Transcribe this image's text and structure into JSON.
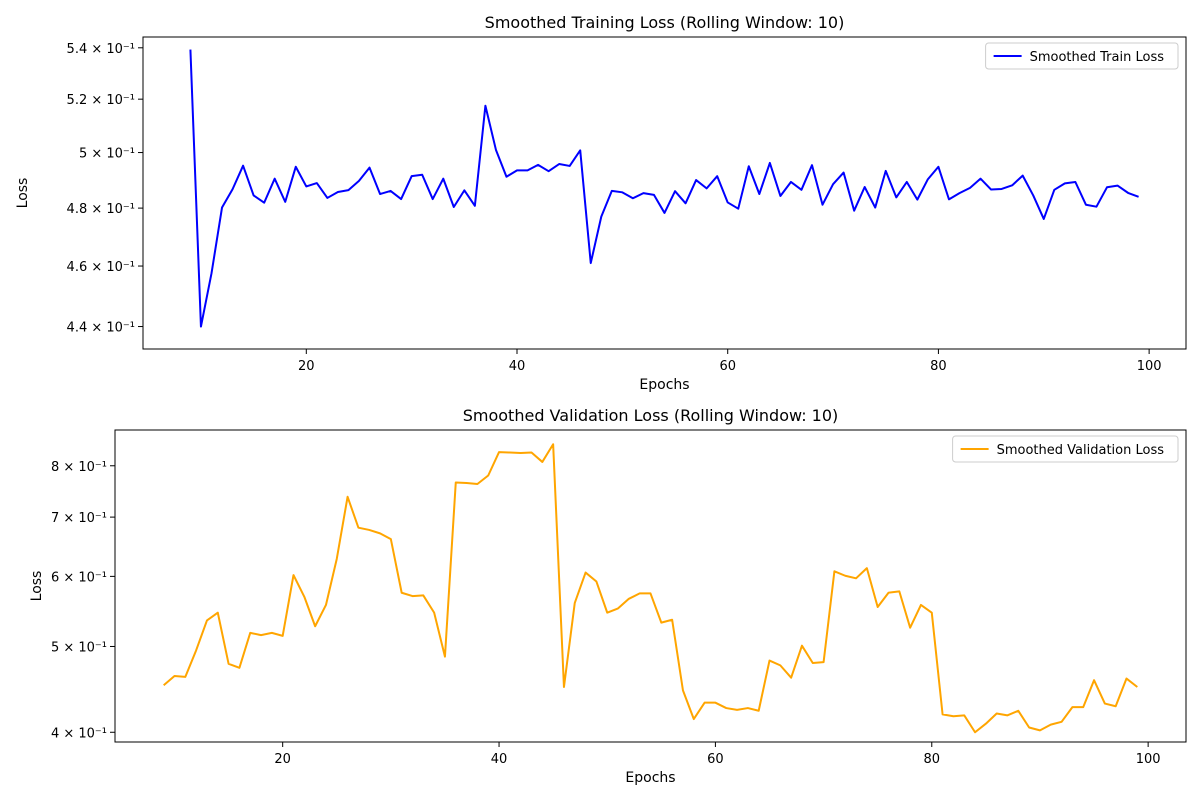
{
  "chart_data": [
    {
      "type": "line",
      "title": "Smoothed Training Loss (Rolling Window: 10)",
      "xlabel": "Epochs",
      "ylabel": "Loss",
      "yscale": "log",
      "xlim": [
        4.5,
        103.5
      ],
      "ylim": [
        0.4328,
        0.5443
      ],
      "xticks": [
        20,
        40,
        60,
        80,
        100
      ],
      "yticks": [
        {
          "value": 0.44,
          "label": "4.4 × 10⁻¹"
        },
        {
          "value": 0.46,
          "label": "4.6 × 10⁻¹"
        },
        {
          "value": 0.48,
          "label": "4.8 × 10⁻¹"
        },
        {
          "value": 0.5,
          "label": "5 × 10⁻¹"
        },
        {
          "value": 0.52,
          "label": "5.2 × 10⁻¹"
        },
        {
          "value": 0.54,
          "label": "5.4 × 10⁻¹"
        }
      ],
      "grid": false,
      "legend_position": "top-right",
      "series": [
        {
          "name": "Smoothed Train Loss",
          "color": "#0000ff",
          "x": [
            9,
            10,
            11,
            12,
            13,
            14,
            15,
            16,
            17,
            18,
            19,
            20,
            21,
            22,
            23,
            24,
            25,
            26,
            27,
            28,
            29,
            30,
            31,
            32,
            33,
            34,
            35,
            36,
            37,
            38,
            39,
            40,
            41,
            42,
            43,
            44,
            45,
            46,
            47,
            48,
            49,
            50,
            51,
            52,
            53,
            54,
            55,
            56,
            57,
            58,
            59,
            60,
            61,
            62,
            63,
            64,
            65,
            66,
            67,
            68,
            69,
            70,
            71,
            72,
            73,
            74,
            75,
            76,
            77,
            78,
            79,
            80,
            81,
            82,
            83,
            84,
            85,
            86,
            87,
            88,
            89,
            90,
            91,
            92,
            93,
            94,
            95,
            96,
            97,
            98,
            99
          ],
          "values": [
            0.5393,
            0.44,
            0.4575,
            0.4802,
            0.4867,
            0.4952,
            0.4845,
            0.4819,
            0.4905,
            0.4822,
            0.4948,
            0.4877,
            0.4889,
            0.4836,
            0.4857,
            0.4864,
            0.4897,
            0.4945,
            0.485,
            0.4861,
            0.4832,
            0.4914,
            0.4919,
            0.4832,
            0.4905,
            0.4804,
            0.4863,
            0.4808,
            0.5175,
            0.501,
            0.4912,
            0.4935,
            0.4935,
            0.4955,
            0.4932,
            0.4958,
            0.4951,
            0.5008,
            0.461,
            0.477,
            0.4861,
            0.4856,
            0.4835,
            0.4853,
            0.4847,
            0.4783,
            0.486,
            0.4817,
            0.49,
            0.487,
            0.4914,
            0.482,
            0.4798,
            0.495,
            0.485,
            0.4962,
            0.4843,
            0.4893,
            0.4865,
            0.4954,
            0.4812,
            0.4885,
            0.4927,
            0.4791,
            0.4875,
            0.4802,
            0.4933,
            0.4838,
            0.4893,
            0.483,
            0.4903,
            0.4948,
            0.4831,
            0.4853,
            0.4872,
            0.4905,
            0.4866,
            0.4868,
            0.4881,
            0.4916,
            0.4845,
            0.4762,
            0.4865,
            0.4888,
            0.4893,
            0.4812,
            0.4805,
            0.4874,
            0.488,
            0.4854,
            0.484
          ]
        }
      ]
    },
    {
      "type": "line",
      "title": "Smoothed Validation Loss (Rolling Window: 10)",
      "xlabel": "Epochs",
      "ylabel": "Loss",
      "yscale": "log",
      "xlim": [
        4.5,
        103.5
      ],
      "ylim": [
        0.39,
        0.878
      ],
      "xticks": [
        20,
        40,
        60,
        80,
        100
      ],
      "yticks": [
        {
          "value": 0.4,
          "label": "4 × 10⁻¹"
        },
        {
          "value": 0.5,
          "label": "5 × 10⁻¹"
        },
        {
          "value": 0.6,
          "label": "6 × 10⁻¹"
        },
        {
          "value": 0.7,
          "label": "7 × 10⁻¹"
        },
        {
          "value": 0.8,
          "label": "8 × 10⁻¹"
        }
      ],
      "grid": false,
      "legend_position": "top-right",
      "series": [
        {
          "name": "Smoothed Validation Loss",
          "color": "#ffa500",
          "x": [
            9,
            10,
            11,
            12,
            13,
            14,
            15,
            16,
            17,
            18,
            19,
            20,
            21,
            22,
            23,
            24,
            25,
            26,
            27,
            28,
            29,
            30,
            31,
            32,
            33,
            34,
            35,
            36,
            37,
            38,
            39,
            40,
            41,
            42,
            43,
            44,
            45,
            46,
            47,
            48,
            49,
            50,
            51,
            52,
            53,
            54,
            55,
            56,
            57,
            58,
            59,
            60,
            61,
            62,
            63,
            64,
            65,
            66,
            67,
            68,
            69,
            70,
            71,
            72,
            73,
            74,
            75,
            76,
            77,
            78,
            79,
            80,
            81,
            82,
            83,
            84,
            85,
            86,
            87,
            88,
            89,
            90,
            91,
            92,
            93,
            94,
            95,
            96,
            97,
            98,
            99
          ],
          "values": [
            0.452,
            0.463,
            0.462,
            0.495,
            0.535,
            0.546,
            0.478,
            0.473,
            0.518,
            0.515,
            0.518,
            0.514,
            0.602,
            0.569,
            0.527,
            0.557,
            0.628,
            0.738,
            0.681,
            0.677,
            0.671,
            0.661,
            0.575,
            0.57,
            0.571,
            0.546,
            0.487,
            0.766,
            0.765,
            0.763,
            0.78,
            0.829,
            0.828,
            0.827,
            0.828,
            0.808,
            0.846,
            0.45,
            0.56,
            0.606,
            0.592,
            0.546,
            0.552,
            0.566,
            0.574,
            0.574,
            0.532,
            0.536,
            0.446,
            0.414,
            0.432,
            0.432,
            0.426,
            0.424,
            0.426,
            0.423,
            0.482,
            0.476,
            0.461,
            0.501,
            0.479,
            0.48,
            0.608,
            0.601,
            0.597,
            0.613,
            0.554,
            0.575,
            0.577,
            0.525,
            0.557,
            0.546,
            0.419,
            0.417,
            0.418,
            0.4,
            0.409,
            0.42,
            0.418,
            0.423,
            0.405,
            0.402,
            0.408,
            0.411,
            0.427,
            0.427,
            0.458,
            0.431,
            0.428,
            0.46,
            0.45
          ]
        }
      ]
    }
  ]
}
